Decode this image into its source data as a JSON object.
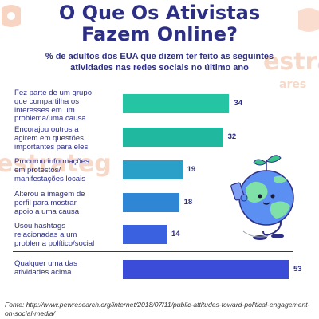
{
  "title_line1": "O Que Os Ativistas",
  "title_line2": "Fazem Online?",
  "subtitle_line1": "% de adultos dos EUA que dizem ter feito as seguintes",
  "subtitle_line2": "atividades nas redes sociais no último ano",
  "watermark_left": "estrateg",
  "watermark_right": "estra",
  "watermark_right_sub": "ares",
  "source_prefix": "Fonte:",
  "source_url": "http://www.pewresearch.org/internet/2018/07/11/public-attitudes-toward-political-engagement-on-social-media/",
  "colors": {
    "title": "#2d2f85",
    "bar_scale": [
      "#25c4a3",
      "#20b9a0",
      "#2a9fc8",
      "#2f86d4",
      "#3a62e0",
      "#3b4cd8"
    ]
  },
  "chart_data": {
    "type": "bar",
    "orientation": "horizontal",
    "categories": [
      [
        "Fez parte de um grupo",
        "que compartilha os",
        "interesses em um",
        "problema/uma causa"
      ],
      [
        "Encorajou outros a",
        "agirem em questões",
        "importantes para eles"
      ],
      [
        "Procurou informações",
        "em protestos/",
        "manifestações locais"
      ],
      [
        "Alterou a imagem de",
        "perfil para mostrar",
        "apoio a uma causa"
      ],
      [
        "Usou hashtags",
        "relacionadas a um",
        "problema político/social"
      ],
      [
        "Qualquer uma das",
        "atividades acima"
      ]
    ],
    "values": [
      34,
      32,
      19,
      18,
      14,
      53
    ],
    "xlim": [
      0,
      53
    ],
    "grid": false,
    "legend": "none"
  }
}
